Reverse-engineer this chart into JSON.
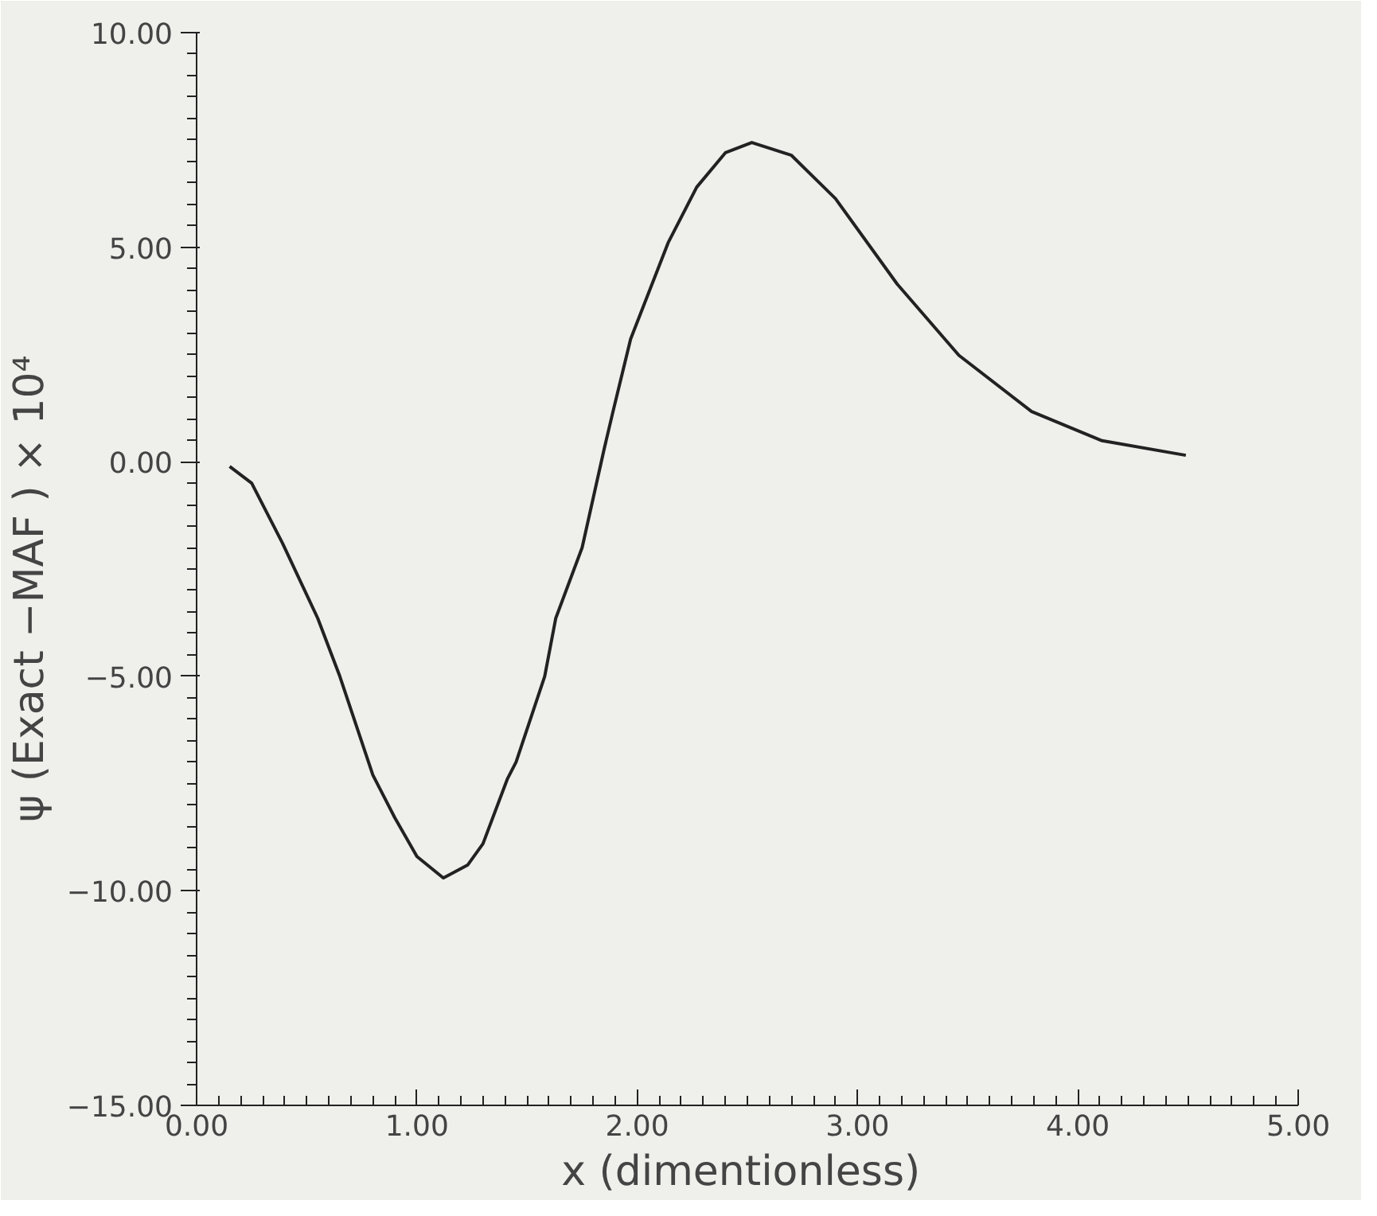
{
  "chart_data": {
    "type": "line",
    "xlabel": "x  (dimentionless)",
    "ylabel": "ψ (Exact  −MAF )  ×  10⁴",
    "x": [
      0.15,
      0.25,
      0.39,
      0.55,
      0.65,
      0.8,
      0.9,
      1.0,
      1.12,
      1.23,
      1.3,
      1.41,
      1.45,
      1.58,
      1.63,
      1.75,
      1.85,
      1.89,
      1.97,
      2.14,
      2.27,
      2.4,
      2.52,
      2.7,
      2.9,
      3.18,
      3.46,
      3.79,
      4.11,
      4.49
    ],
    "series": [
      {
        "color": "#222222",
        "values": [
          -0.11,
          -0.5,
          -1.9,
          -3.65,
          -5.0,
          -7.3,
          -8.3,
          -9.2,
          -9.7,
          -9.4,
          -8.9,
          -7.4,
          -7.0,
          -5.0,
          -3.65,
          -2.0,
          0.3,
          1.17,
          2.86,
          5.1,
          6.4,
          7.2,
          7.44,
          7.14,
          6.13,
          4.14,
          2.48,
          1.17,
          0.49,
          0.15
        ]
      }
    ],
    "xlim": [
      0,
      5
    ],
    "ylim": [
      -15,
      10
    ],
    "xticks": [
      {
        "value": 0,
        "label": "0.00"
      },
      {
        "value": 1,
        "label": "1.00"
      },
      {
        "value": 2,
        "label": "2.00"
      },
      {
        "value": 3,
        "label": "3.00"
      },
      {
        "value": 4,
        "label": "4.00"
      },
      {
        "value": 5,
        "label": "5.00"
      }
    ],
    "yticks": [
      {
        "value": -15,
        "label": "−15.00"
      },
      {
        "value": -10,
        "label": "−10.00"
      },
      {
        "value": -5,
        "label": "−5.00"
      },
      {
        "value": 0,
        "label": "0.00"
      },
      {
        "value": 5,
        "label": "5.00"
      },
      {
        "value": 10,
        "label": "10.00"
      }
    ],
    "grid": false,
    "marker": "none",
    "line_style": "solid"
  }
}
